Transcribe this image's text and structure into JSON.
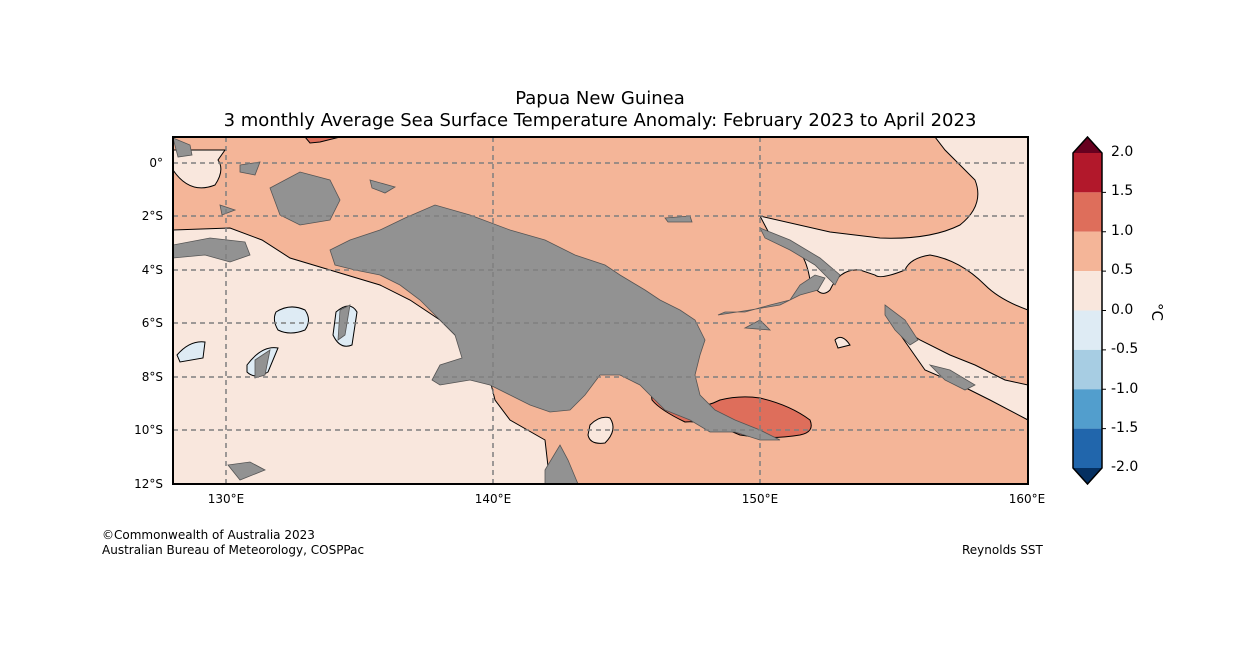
{
  "title": {
    "line1": "Papua New Guinea",
    "line2": "3 monthly Average Sea Surface Temperature Anomaly: February 2023 to April 2023"
  },
  "axes": {
    "lat_labels": [
      "0°",
      "2°S",
      "4°S",
      "6°S",
      "8°S",
      "10°S",
      "12°S"
    ],
    "lon_labels": [
      "130°E",
      "140°E",
      "150°E",
      "160°E"
    ]
  },
  "colorbar": {
    "unit": "°C",
    "labels": [
      "2.0",
      "1.5",
      "1.0",
      "0.5",
      "0.0",
      "-0.5",
      "-1.0",
      "-1.5",
      "-2.0"
    ],
    "colors": [
      "#b2182b",
      "#de6e5b",
      "#f4b598",
      "#f9e7dd",
      "#deebf4",
      "#a7cde3",
      "#529ecd",
      "#2166ac"
    ],
    "overflow_top": "#67001f",
    "overflow_bottom": "#053061"
  },
  "map_colors": {
    "land": "#929292",
    "anom_0_05": "#f9e7dd",
    "anom_05_1": "#f4b598",
    "anom_1_15": "#de6e5b",
    "anom_neg": "#deebf4",
    "grid": "#7f7f7f"
  },
  "footer": {
    "copyright": "©Commonwealth of Australia 2023",
    "agency": "Australian Bureau of Meteorology, COSPPac",
    "source": "Reynolds SST"
  }
}
